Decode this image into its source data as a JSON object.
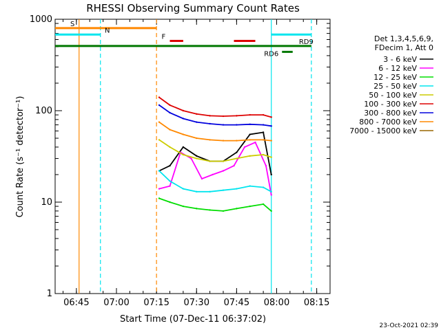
{
  "chart_data": {
    "type": "line",
    "title": "RHESSI Observing Summary Count Rates",
    "xlabel": "Start Time (07-Dec-11 06:37:02)",
    "ylabel": "Count Rate (s⁻¹ detector⁻¹)",
    "yscale": "log",
    "ylim": [
      1,
      1000
    ],
    "xlim": [
      "06:37:02",
      "08:20:00"
    ],
    "x_ticks": [
      "06:45",
      "07:00",
      "07:15",
      "07:30",
      "07:45",
      "08:00",
      "08:15"
    ],
    "y_ticks": [
      "1",
      "10",
      "100",
      "1000"
    ],
    "legend": {
      "position": "right",
      "header": [
        "Det 1,3,4,5,6,9,",
        "FDecim 1, Att 0"
      ],
      "entries": [
        {
          "label": "3 - 6 keV",
          "color": "#000000"
        },
        {
          "label": "6 - 12 keV",
          "color": "#ff00ff"
        },
        {
          "label": "12 - 25 keV",
          "color": "#00dd00"
        },
        {
          "label": "25 - 50 keV",
          "color": "#00e5ee"
        },
        {
          "label": "50 - 100 keV",
          "color": "#cccc00"
        },
        {
          "label": "100 - 300 keV",
          "color": "#dd0000"
        },
        {
          "label": "300 - 800 keV",
          "color": "#0000dd"
        },
        {
          "label": "800 - 7000 keV",
          "color": "#ff8800"
        },
        {
          "label": "7000 - 15000 keV",
          "color": "#996600"
        }
      ]
    },
    "series": [
      {
        "name": "3 - 6 keV",
        "color": "#000000",
        "x": [
          "07:16",
          "07:20",
          "07:25",
          "07:30",
          "07:35",
          "07:40",
          "07:45",
          "07:50",
          "07:55",
          "07:58"
        ],
        "values": [
          22,
          25,
          40,
          32,
          28,
          28,
          35,
          55,
          58,
          20
        ]
      },
      {
        "name": "6 - 12 keV",
        "color": "#ff00ff",
        "x": [
          "07:16",
          "07:20",
          "07:24",
          "07:28",
          "07:32",
          "07:36",
          "07:40",
          "07:44",
          "07:48",
          "07:52",
          "07:56",
          "07:58"
        ],
        "values": [
          14,
          15,
          35,
          30,
          18,
          20,
          22,
          25,
          40,
          45,
          25,
          12
        ]
      },
      {
        "name": "12 - 25 keV",
        "color": "#00dd00",
        "x": [
          "07:16",
          "07:20",
          "07:25",
          "07:30",
          "07:35",
          "07:40",
          "07:45",
          "07:50",
          "07:55",
          "07:58"
        ],
        "values": [
          11,
          10,
          9,
          8.5,
          8.2,
          8,
          8.5,
          9,
          9.5,
          8
        ]
      },
      {
        "name": "25 - 50 keV",
        "color": "#00e5ee",
        "x": [
          "07:16",
          "07:20",
          "07:25",
          "07:30",
          "07:35",
          "07:40",
          "07:45",
          "07:50",
          "07:55",
          "07:58"
        ],
        "values": [
          22,
          17,
          14,
          13,
          13,
          13.5,
          14,
          15,
          14.5,
          13
        ]
      },
      {
        "name": "50 - 100 keV",
        "color": "#cccc00",
        "x": [
          "07:16",
          "07:20",
          "07:25",
          "07:30",
          "07:35",
          "07:40",
          "07:45",
          "07:50",
          "07:55",
          "07:58"
        ],
        "values": [
          48,
          40,
          33,
          30,
          28,
          28,
          30,
          32,
          33,
          31
        ]
      },
      {
        "name": "100 - 300 keV",
        "color": "#dd0000",
        "x": [
          "07:16",
          "07:20",
          "07:25",
          "07:30",
          "07:35",
          "07:40",
          "07:45",
          "07:50",
          "07:55",
          "07:58"
        ],
        "values": [
          140,
          115,
          100,
          92,
          88,
          87,
          88,
          90,
          90,
          85
        ]
      },
      {
        "name": "300 - 800 keV",
        "color": "#0000dd",
        "x": [
          "07:16",
          "07:20",
          "07:25",
          "07:30",
          "07:35",
          "07:40",
          "07:45",
          "07:50",
          "07:55",
          "07:58"
        ],
        "values": [
          115,
          95,
          82,
          75,
          72,
          70,
          70,
          71,
          70,
          68
        ]
      },
      {
        "name": "800 - 7000 keV",
        "color": "#ff8800",
        "x": [
          "07:16",
          "07:20",
          "07:25",
          "07:30",
          "07:35",
          "07:40",
          "07:45",
          "07:50",
          "07:55",
          "07:58"
        ],
        "values": [
          75,
          62,
          55,
          50,
          48,
          47,
          47,
          48,
          48,
          47
        ]
      },
      {
        "name": "7000 - 15000 keV",
        "color": "#996600",
        "x": [],
        "values": []
      }
    ],
    "annotations": {
      "level_bars": [
        {
          "label": "S",
          "color": "#ff8800",
          "x": [
            "06:37:02",
            "07:15"
          ],
          "y": 800
        },
        {
          "label": "N",
          "color": "#00e5ee",
          "x": [
            "06:37:02",
            "06:54"
          ],
          "y": 680
        },
        {
          "label": "N",
          "color": "#00e5ee",
          "x": [
            "07:58",
            "08:13"
          ],
          "y": 680
        },
        {
          "label": "F",
          "color": "#dd0000",
          "x": [
            "07:20",
            "07:25"
          ],
          "y": 580
        },
        {
          "label": "F",
          "color": "#dd0000",
          "x": [
            "07:44",
            "07:52"
          ],
          "y": 580
        },
        {
          "label": "RD9",
          "color": "#007700",
          "x": [
            "06:37:02",
            "08:13"
          ],
          "y": 510
        },
        {
          "label": "RD6",
          "color": "#007700",
          "x": [
            "08:02",
            "08:06"
          ],
          "y": 440
        }
      ],
      "vertical_lines": [
        {
          "x": "06:46",
          "color": "#ff8800",
          "style": "solid"
        },
        {
          "x": "06:54",
          "color": "#00e5ee",
          "style": "dashed"
        },
        {
          "x": "07:15",
          "color": "#ff8800",
          "style": "dashed"
        },
        {
          "x": "07:58",
          "color": "#00e5ee",
          "style": "solid"
        },
        {
          "x": "08:13",
          "color": "#00e5ee",
          "style": "dashed"
        }
      ]
    },
    "footer_timestamp": "23-Oct-2021 02:39"
  }
}
